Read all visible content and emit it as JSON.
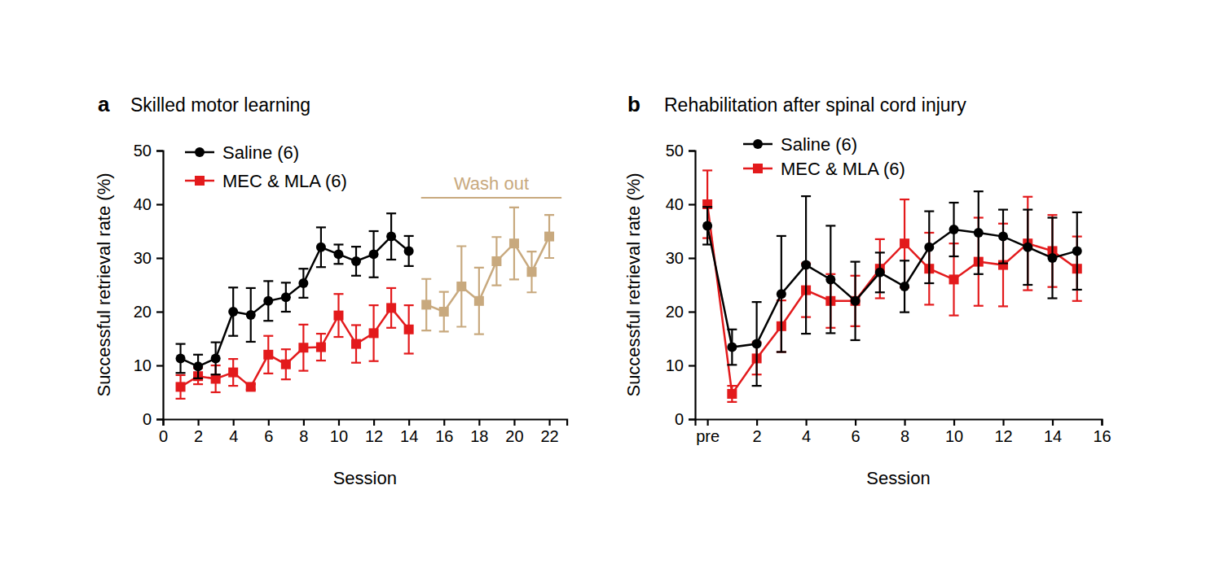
{
  "chart_data": [
    {
      "type": "line",
      "panel": "a",
      "title": "Skilled motor learning",
      "x_label": "Session",
      "y_label": "Successful retrieval rate (%)",
      "xlim": [
        0,
        23
      ],
      "xticks": [
        0,
        2,
        4,
        6,
        8,
        10,
        12,
        14,
        16,
        18,
        20,
        22
      ],
      "ylim": [
        0,
        50
      ],
      "yticks": [
        0,
        10,
        20,
        30,
        40,
        50
      ],
      "legend": "upper left",
      "series": [
        {
          "name": "Saline (6)",
          "color": "#000000",
          "marker": "circle",
          "x": [
            1,
            2,
            3,
            4,
            5,
            6,
            7,
            8,
            9,
            10,
            11,
            12,
            13,
            14
          ],
          "values": [
            11.3,
            9.8,
            11.3,
            20,
            19.4,
            22,
            22.7,
            25.3,
            32,
            30.7,
            29.4,
            30.7,
            34,
            31.3
          ],
          "errors": [
            2.7,
            2.2,
            3,
            4.5,
            5,
            3.7,
            2.7,
            2.7,
            3.7,
            1.8,
            2.7,
            4.3,
            4.3,
            2.8
          ]
        },
        {
          "name": "MEC & MLA (6)",
          "color": "#e31a1c",
          "marker": "square",
          "x": [
            1,
            2,
            3,
            4,
            5,
            6,
            7,
            8,
            9,
            10,
            11,
            12,
            13,
            14
          ],
          "values": [
            6,
            8,
            7.5,
            8.7,
            6,
            12,
            10.2,
            13.3,
            13.4,
            19.3,
            14,
            16,
            20.7,
            16.7
          ],
          "errors": [
            2.2,
            1.5,
            2.5,
            2.5,
            0.5,
            3.5,
            2.8,
            4.3,
            2.5,
            4,
            3.5,
            5.2,
            3.7,
            4.5
          ]
        },
        {
          "color": "#c8a97e",
          "marker": "square",
          "x": [
            15,
            16,
            17,
            18,
            19,
            20,
            21,
            22
          ],
          "values": [
            21.3,
            20,
            24.7,
            22,
            29.4,
            32.7,
            27.4,
            34
          ],
          "errors": [
            4.8,
            3.7,
            7.5,
            6.2,
            4.5,
            6.7,
            3.8,
            4
          ]
        }
      ],
      "annotations": [
        {
          "text": "Wash out",
          "x": [
            14.7,
            22.7
          ],
          "y": 41.2
        }
      ]
    },
    {
      "type": "line",
      "panel": "b",
      "title": "Rehabilitation after spinal cord injury",
      "x_label": "Session",
      "y_label": "Successful retrieval rate (%)",
      "xlim": [
        -0.5,
        16
      ],
      "xticks": [
        {
          "value": 0,
          "label": "pre"
        },
        2,
        4,
        6,
        8,
        10,
        12,
        14,
        16
      ],
      "ylim": [
        0,
        50
      ],
      "yticks": [
        0,
        10,
        20,
        30,
        40,
        50
      ],
      "legend": "upper left",
      "series": [
        {
          "name": "Saline (6)",
          "color": "#000000",
          "marker": "circle",
          "x": [
            0,
            1,
            2,
            3,
            4,
            5,
            6,
            7,
            8,
            9,
            10,
            11,
            12,
            13,
            14,
            15
          ],
          "values": [
            36,
            13.4,
            14,
            23.3,
            28.7,
            26,
            22,
            27.3,
            24.7,
            32,
            35.3,
            34.7,
            34,
            32,
            30,
            31.3
          ],
          "errors": [
            3.5,
            3.3,
            7.8,
            10.8,
            12.8,
            10,
            7.3,
            3.7,
            4.8,
            6.7,
            5,
            7.7,
            5,
            7,
            7.5,
            7.2
          ]
        },
        {
          "name": "MEC & MLA (6)",
          "color": "#e31a1c",
          "marker": "square",
          "x": [
            0,
            1,
            2,
            3,
            4,
            5,
            6,
            7,
            8,
            9,
            10,
            11,
            12,
            13,
            14,
            15
          ],
          "values": [
            40,
            4.7,
            11.3,
            17.3,
            24,
            22,
            22,
            28,
            32.7,
            28,
            26,
            29.3,
            28.7,
            32.7,
            31.3,
            28
          ],
          "errors": [
            6.3,
            1.5,
            3,
            4.8,
            5,
            5,
            4.7,
            5.5,
            8.2,
            6.7,
            6.7,
            8.2,
            7.7,
            8.7,
            6.7,
            6
          ]
        }
      ]
    }
  ]
}
